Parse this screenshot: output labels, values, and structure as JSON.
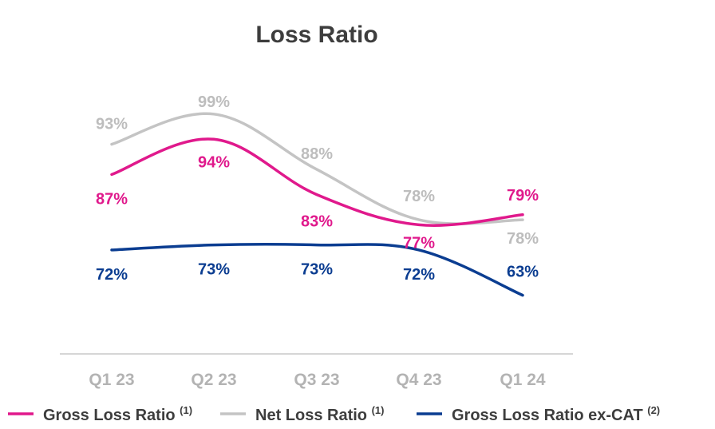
{
  "chart_data": {
    "type": "line",
    "title": "Loss Ratio",
    "categories": [
      "Q1 23",
      "Q2 23",
      "Q3 23",
      "Q4 23",
      "Q1 24"
    ],
    "value_suffix": "%",
    "ylim": [
      55,
      105
    ],
    "grid": false,
    "legend_position": "bottom",
    "series": [
      {
        "name": "Gross Loss Ratio",
        "footnote": "(1)",
        "color": "#e0198c",
        "values": [
          87,
          94,
          83,
          77,
          79
        ]
      },
      {
        "name": "Net Loss Ratio",
        "footnote": "(1)",
        "color": "#c4c4c4",
        "values": [
          93,
          99,
          88,
          78,
          78
        ]
      },
      {
        "name": "Gross Loss Ratio ex-CAT",
        "footnote": "(2)",
        "color": "#0b3d91",
        "values": [
          72,
          73,
          73,
          72,
          63
        ]
      }
    ]
  }
}
